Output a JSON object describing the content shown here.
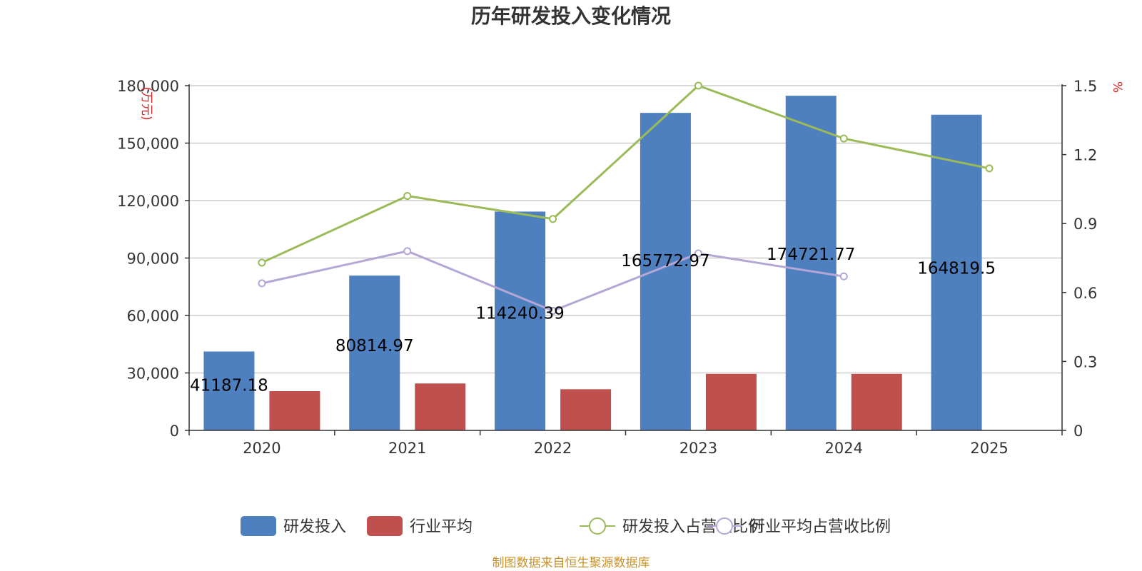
{
  "chart_data": {
    "type": "bar",
    "title": "历年研发投入变化情况",
    "categories": [
      "2020",
      "2021",
      "2022",
      "2023",
      "2024",
      "2025"
    ],
    "y_left": {
      "unit": "(万元)",
      "min": 0,
      "max": 180000,
      "ticks": [
        0,
        30000,
        60000,
        90000,
        120000,
        150000,
        180000
      ],
      "tick_labels": [
        "0",
        "30,000",
        "60,000",
        "90,000",
        "120,000",
        "150,000",
        "180,000"
      ]
    },
    "y_right": {
      "unit": "%",
      "min": 0,
      "max": 1.5,
      "ticks": [
        0,
        0.3,
        0.6,
        0.9,
        1.2,
        1.5
      ],
      "tick_labels": [
        "0",
        "0.3",
        "0.6",
        "0.9",
        "1.2",
        "1.5"
      ]
    },
    "grid": true,
    "legend_position": "bottom",
    "series": [
      {
        "name": "研发投入",
        "kind": "bar",
        "axis": "left",
        "color": "#4e7fbf",
        "values": [
          41187.18,
          80814.97,
          114240.39,
          165772.97,
          174721.77,
          164819.5
        ],
        "labels": [
          "41187.18",
          "80814.97",
          "114240.39",
          "165772.97",
          "174721.77",
          "164819.5"
        ]
      },
      {
        "name": "行业平均",
        "kind": "bar",
        "axis": "left",
        "color": "#c0504d",
        "values": [
          20500,
          24500,
          21500,
          29500,
          29500,
          null
        ]
      },
      {
        "name": "研发投入占营收比例",
        "kind": "line",
        "axis": "right",
        "color": "#9bbb59",
        "values": [
          0.73,
          1.02,
          0.92,
          1.5,
          1.27,
          1.14
        ]
      },
      {
        "name": "行业平均占营收比例",
        "kind": "line",
        "axis": "right",
        "color": "#b4a7d6",
        "values": [
          0.64,
          0.78,
          0.52,
          0.77,
          0.67,
          null
        ]
      }
    ],
    "source": "制图数据来自恒生聚源数据库"
  }
}
